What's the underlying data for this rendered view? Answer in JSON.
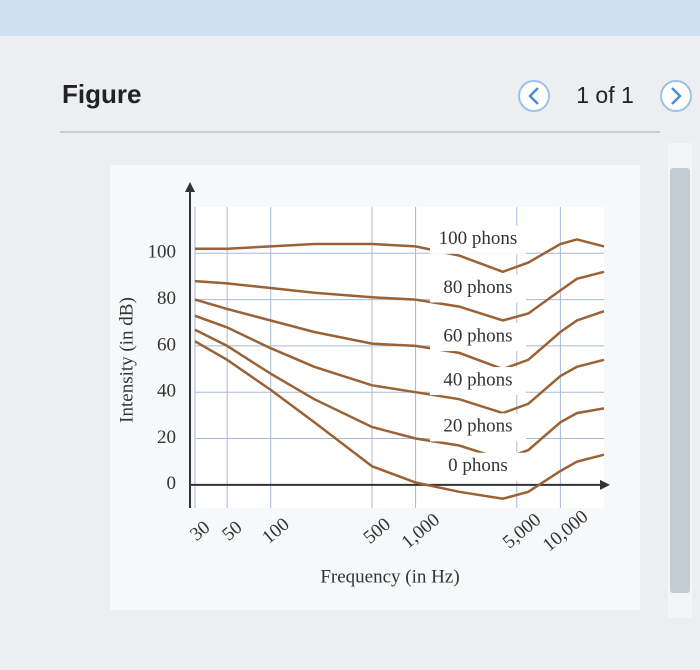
{
  "header": {
    "title": "Figure",
    "pager": "1 of 1"
  },
  "chart_data": {
    "type": "line",
    "x_scale": "log",
    "x_label": "Frequency (in Hz)",
    "y_label": "Intensity (in dB)",
    "x": [
      30,
      50,
      100,
      200,
      500,
      1000,
      2000,
      4000,
      6000,
      10000,
      13000,
      20000
    ],
    "series": [
      {
        "name": "100 phons",
        "color": "#9a6235",
        "values": [
          102,
          102,
          103,
          104,
          104,
          103,
          99,
          92,
          96,
          104,
          106,
          103
        ]
      },
      {
        "name": "80 phons",
        "color": "#9a6235",
        "values": [
          88,
          87,
          85,
          83,
          81,
          80,
          77,
          71,
          74,
          84,
          89,
          92
        ]
      },
      {
        "name": "60 phons",
        "color": "#9a6235",
        "values": [
          80,
          76,
          71,
          66,
          61,
          60,
          57,
          50,
          54,
          66,
          71,
          75
        ]
      },
      {
        "name": "40 phons",
        "color": "#9a6235",
        "values": [
          73,
          68,
          59,
          51,
          43,
          40,
          37,
          31,
          35,
          47,
          51,
          54
        ]
      },
      {
        "name": "20 phons",
        "color": "#9a6235",
        "values": [
          67,
          60,
          48,
          37,
          25,
          20,
          17,
          11,
          15,
          27,
          31,
          33
        ]
      },
      {
        "name": "0 phons",
        "color": "#9a6235",
        "values": [
          62,
          54,
          41,
          27,
          8,
          1,
          -3,
          -6,
          -3,
          6,
          10,
          13
        ]
      }
    ],
    "xlim": [
      30,
      20000
    ],
    "ylim": [
      -10,
      120
    ],
    "xticks": [
      30,
      50,
      100,
      500,
      {
        "value": 1000,
        "label": "1,000"
      },
      {
        "value": 5000,
        "label": "5,000"
      },
      {
        "value": 10000,
        "label": "10,000"
      }
    ],
    "yticks": [
      0,
      20,
      40,
      60,
      80,
      100
    ],
    "grid": true
  }
}
